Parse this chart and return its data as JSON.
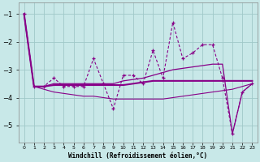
{
  "xlabel": "Windchill (Refroidissement éolien,°C)",
  "background_color": "#c8e8e8",
  "grid_color": "#a0c8c8",
  "line_color": "#880088",
  "x_values": [
    0,
    1,
    2,
    3,
    4,
    5,
    6,
    7,
    8,
    9,
    10,
    11,
    12,
    13,
    14,
    15,
    16,
    17,
    18,
    19,
    20,
    21,
    22,
    23
  ],
  "line_jagged": [
    -1.0,
    -3.6,
    -3.6,
    -3.3,
    -3.6,
    -3.6,
    -3.6,
    -2.6,
    -3.5,
    -4.4,
    -3.2,
    -3.2,
    -3.5,
    -2.3,
    -3.3,
    -1.3,
    -2.6,
    -2.4,
    -2.1,
    -2.1,
    -3.3,
    -5.3,
    -3.8,
    -3.5
  ],
  "line_diagonal": [
    -1.0,
    -3.6,
    -3.7,
    -3.8,
    -3.85,
    -3.9,
    -3.95,
    -3.95,
    -4.0,
    -4.05,
    -4.05,
    -4.05,
    -4.05,
    -4.05,
    -4.05,
    -4.0,
    -3.95,
    -3.9,
    -3.85,
    -3.8,
    -3.75,
    -3.7,
    -3.6,
    -3.5
  ],
  "line_flat": [
    -1.0,
    -3.6,
    -3.6,
    -3.55,
    -3.55,
    -3.55,
    -3.55,
    -3.55,
    -3.55,
    -3.55,
    -3.55,
    -3.5,
    -3.45,
    -3.4,
    -3.4,
    -3.4,
    -3.4,
    -3.4,
    -3.4,
    -3.4,
    -3.4,
    -3.4,
    -3.4,
    -3.4
  ],
  "line_rising": [
    -1.0,
    -3.6,
    -3.6,
    -3.5,
    -3.5,
    -3.5,
    -3.5,
    -3.5,
    -3.5,
    -3.5,
    -3.4,
    -3.35,
    -3.3,
    -3.2,
    -3.1,
    -3.0,
    -2.95,
    -2.9,
    -2.85,
    -2.8,
    -2.8,
    -5.3,
    -3.8,
    -3.5
  ],
  "ylim": [
    -5.6,
    -0.6
  ],
  "xlim": [
    -0.5,
    23.5
  ],
  "yticks": [
    -5,
    -4,
    -3,
    -2,
    -1
  ],
  "xtick_labels": [
    "0",
    "1",
    "2",
    "3",
    "4",
    "5",
    "6",
    "7",
    "8",
    "9",
    "10",
    "11",
    "12",
    "13",
    "14",
    "15",
    "16",
    "17",
    "18",
    "19",
    "20",
    "21",
    "22",
    "23"
  ]
}
